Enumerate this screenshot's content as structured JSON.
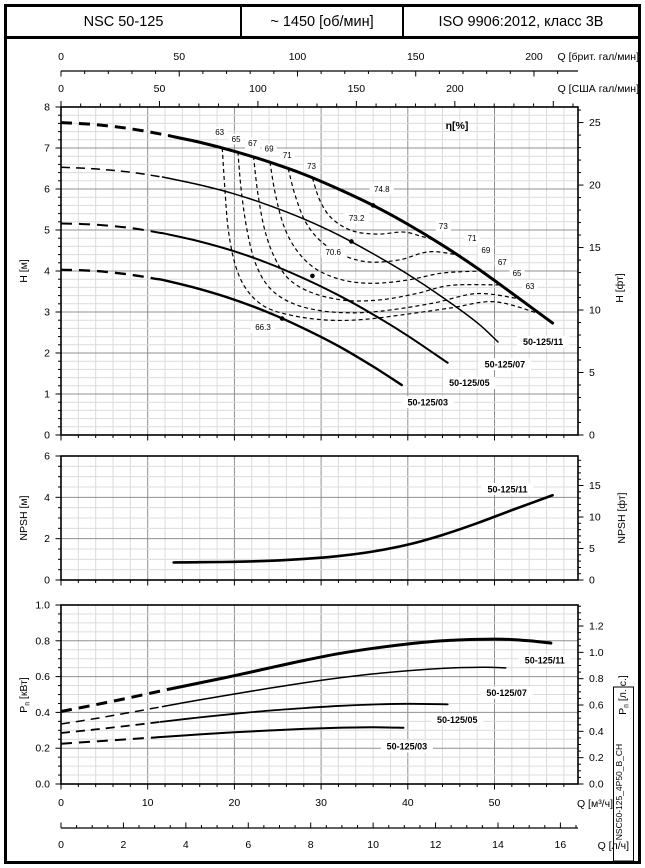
{
  "header": {
    "model": "NSC 50-125",
    "speed": "~ 1450 [об/мин]",
    "standard": "ISO 9906:2012, класс 3В"
  },
  "side_text": "NSC50-125_4P50_B_CH",
  "colors": {
    "ink": "#000000",
    "grid_minor": "#dcdcdc",
    "grid_major": "#909090"
  },
  "chart_data": {
    "type": "line",
    "x_scales": {
      "top_imperial": {
        "label": "Q [брит. гал/мин]",
        "ticks": [
          "0",
          "50",
          "100",
          "150",
          "200"
        ],
        "minor_step": 10,
        "max": 218,
        "m3h_per_unit": 0.27276
      },
      "top_us": {
        "label": "Q [США гал/мин]",
        "ticks": [
          "0",
          "50",
          "100",
          "150",
          "200"
        ],
        "minor_step": 10,
        "max": 262,
        "m3h_per_unit": 0.22712
      },
      "bottom_m3h": {
        "label": "Q [м³/ч]",
        "ticks": [
          "0",
          "10",
          "20",
          "30",
          "40",
          "50"
        ],
        "minor_step": 2,
        "max": 59.6,
        "m3h_per_unit": 1
      },
      "bottom_ls": {
        "label": "Q [л/ч]",
        "ticks": [
          "0",
          "2",
          "4",
          "6",
          "8",
          "10",
          "12",
          "14",
          "16"
        ],
        "minor_step": 0.5,
        "max": 16.5,
        "m3h_per_unit": 3.6
      },
      "q_range_m3h": [
        0,
        59.63
      ]
    },
    "head": {
      "y_left": {
        "label": "H [м]",
        "ticks": [
          "0",
          "1",
          "2",
          "3",
          "4",
          "5",
          "6",
          "7",
          "8"
        ],
        "range": [
          0,
          8
        ]
      },
      "y_right": {
        "label": "H [фт]",
        "ticks": [
          "0",
          "5",
          "10",
          "15",
          "20",
          "25"
        ]
      },
      "eta_label": {
        "text": "η[%]",
        "q": 45.7,
        "h": 7.56
      },
      "curves": [
        {
          "name": "50-125/11",
          "width": 3,
          "dash_until": 12.5,
          "label_at": [
            55.6,
            2.27
          ],
          "points": [
            [
              0,
              7.62
            ],
            [
              4,
              7.57
            ],
            [
              8,
              7.47
            ],
            [
              12,
              7.32
            ],
            [
              16,
              7.14
            ],
            [
              20,
              6.92
            ],
            [
              24,
              6.66
            ],
            [
              28,
              6.36
            ],
            [
              32,
              6.0
            ],
            [
              36,
              5.6
            ],
            [
              40,
              5.14
            ],
            [
              44,
              4.63
            ],
            [
              48,
              4.07
            ],
            [
              52,
              3.46
            ],
            [
              56.7,
              2.73
            ]
          ]
        },
        {
          "name": "50-125/07",
          "width": 1.5,
          "dash_until": 12,
          "label_at": [
            51.2,
            1.73
          ],
          "points": [
            [
              0,
              6.53
            ],
            [
              4,
              6.49
            ],
            [
              8,
              6.41
            ],
            [
              12,
              6.28
            ],
            [
              16,
              6.1
            ],
            [
              20,
              5.88
            ],
            [
              24,
              5.6
            ],
            [
              28,
              5.27
            ],
            [
              32,
              4.88
            ],
            [
              36,
              4.42
            ],
            [
              40,
              3.92
            ],
            [
              44,
              3.36
            ],
            [
              48,
              2.74
            ],
            [
              50.4,
              2.27
            ]
          ]
        },
        {
          "name": "50-125/05",
          "width": 2,
          "dash_until": 11.5,
          "label_at": [
            47.1,
            1.27
          ],
          "points": [
            [
              0,
              5.16
            ],
            [
              4,
              5.13
            ],
            [
              8,
              5.05
            ],
            [
              12,
              4.91
            ],
            [
              16,
              4.72
            ],
            [
              20,
              4.48
            ],
            [
              24,
              4.18
            ],
            [
              28,
              3.82
            ],
            [
              32,
              3.41
            ],
            [
              36,
              2.94
            ],
            [
              40,
              2.42
            ],
            [
              44.6,
              1.76
            ]
          ]
        },
        {
          "name": "50-125/03",
          "width": 2.4,
          "dash_until": 11,
          "label_at": [
            42.3,
            0.8
          ],
          "points": [
            [
              0,
              4.03
            ],
            [
              4,
              4.0
            ],
            [
              8,
              3.91
            ],
            [
              12,
              3.77
            ],
            [
              16,
              3.56
            ],
            [
              20,
              3.3
            ],
            [
              24,
              2.98
            ],
            [
              28,
              2.6
            ],
            [
              32,
              2.17
            ],
            [
              36,
              1.67
            ],
            [
              39.3,
              1.22
            ]
          ]
        }
      ],
      "bep_points": [
        {
          "value": "74.8",
          "dot": [
            36,
            5.6
          ],
          "label_at": [
            37.0,
            6.0
          ]
        },
        {
          "value": "73.2",
          "dot": [
            33.5,
            4.72
          ],
          "label_at": [
            34.1,
            5.29
          ]
        },
        {
          "value": "70.6",
          "dot": [
            29,
            3.88
          ],
          "label_at": [
            31.4,
            4.46
          ]
        },
        {
          "value": "66.3",
          "dot": [
            25.5,
            2.84
          ],
          "label_at": [
            23.3,
            2.63
          ]
        }
      ],
      "efficiency_contours": [
        {
          "value": "63",
          "label_top": [
            18.3,
            7.39
          ],
          "label_right": [
            54.1,
            3.63
          ],
          "points": [
            [
              18.6,
              7.0
            ],
            [
              18.9,
              6.0
            ],
            [
              19.3,
              5.0
            ],
            [
              20.1,
              4.15
            ],
            [
              21.4,
              3.55
            ],
            [
              23.6,
              3.12
            ],
            [
              27,
              2.9
            ],
            [
              31,
              2.8
            ],
            [
              35,
              2.82
            ],
            [
              40,
              2.95
            ],
            [
              45,
              3.1
            ],
            [
              50,
              3.25
            ],
            [
              55.3,
              2.95
            ]
          ]
        },
        {
          "value": "65",
          "label_top": [
            20.2,
            7.22
          ],
          "label_right": [
            52.6,
            3.95
          ],
          "points": [
            [
              20.4,
              6.91
            ],
            [
              20.8,
              5.95
            ],
            [
              21.5,
              4.95
            ],
            [
              22.5,
              4.15
            ],
            [
              24.1,
              3.58
            ],
            [
              26.6,
              3.22
            ],
            [
              30,
              3.03
            ],
            [
              34,
              2.98
            ],
            [
              38,
              3.05
            ],
            [
              43,
              3.22
            ],
            [
              48,
              3.45
            ],
            [
              52.9,
              3.32
            ]
          ]
        },
        {
          "value": "67",
          "label_top": [
            22.1,
            7.12
          ],
          "label_right": [
            50.9,
            4.22
          ],
          "points": [
            [
              22.2,
              6.8
            ],
            [
              22.7,
              5.9
            ],
            [
              23.5,
              5.0
            ],
            [
              24.7,
              4.3
            ],
            [
              26.4,
              3.78
            ],
            [
              29.2,
              3.45
            ],
            [
              33,
              3.28
            ],
            [
              37,
              3.3
            ],
            [
              41,
              3.45
            ],
            [
              45,
              3.65
            ],
            [
              50.7,
              3.66
            ]
          ]
        },
        {
          "value": "69",
          "label_top": [
            24.0,
            6.98
          ],
          "label_right": [
            49.0,
            4.51
          ],
          "points": [
            [
              24.1,
              6.66
            ],
            [
              24.7,
              5.9
            ],
            [
              25.7,
              5.1
            ],
            [
              27.2,
              4.5
            ],
            [
              29.4,
              4.05
            ],
            [
              32.5,
              3.78
            ],
            [
              36,
              3.7
            ],
            [
              40,
              3.78
            ],
            [
              44,
              3.95
            ],
            [
              48.5,
              4.0
            ]
          ]
        },
        {
          "value": "71",
          "label_top": [
            26.1,
            6.83
          ],
          "label_right": [
            47.4,
            4.8
          ],
          "points": [
            [
              26.2,
              6.5
            ],
            [
              27.0,
              5.85
            ],
            [
              28.2,
              5.2
            ],
            [
              30.0,
              4.72
            ],
            [
              32.6,
              4.38
            ],
            [
              35.5,
              4.22
            ],
            [
              39,
              4.27
            ],
            [
              42.5,
              4.47
            ],
            [
              46.1,
              4.38
            ]
          ]
        },
        {
          "value": "73",
          "label_top": [
            28.9,
            6.56
          ],
          "label_right": [
            44.1,
            5.1
          ],
          "points": [
            [
              29.0,
              6.27
            ],
            [
              29.9,
              5.7
            ],
            [
              31.3,
              5.27
            ],
            [
              33.6,
              4.98
            ],
            [
              36.5,
              4.9
            ],
            [
              39.5,
              4.95
            ],
            [
              41.5,
              4.85
            ],
            [
              43.0,
              4.76
            ]
          ]
        }
      ]
    },
    "npsh": {
      "y_left": {
        "label": "NPSH [м]",
        "ticks": [
          "0",
          "2",
          "4",
          "6"
        ],
        "range": [
          0,
          6
        ]
      },
      "y_right": {
        "label": "NPSH [фт]",
        "ticks": [
          "0",
          "5",
          "10",
          "15"
        ]
      },
      "curves": [
        {
          "name": "50-125/11",
          "width": 2.6,
          "label_at": [
            51.5,
            4.4
          ],
          "points": [
            [
              13,
              0.85
            ],
            [
              16,
              0.86
            ],
            [
              20,
              0.88
            ],
            [
              24,
              0.93
            ],
            [
              28,
              1.02
            ],
            [
              32,
              1.16
            ],
            [
              36,
              1.38
            ],
            [
              40,
              1.71
            ],
            [
              44,
              2.18
            ],
            [
              48,
              2.75
            ],
            [
              52,
              3.38
            ],
            [
              56.7,
              4.1
            ]
          ]
        }
      ]
    },
    "power": {
      "y_left": {
        "label_pre": "P",
        "label_sub": "п",
        "label_post": " [кВт]",
        "ticks": [
          "0.0",
          "0.2",
          "0.4",
          "0.6",
          "0.8",
          "1.0"
        ],
        "range": [
          0,
          1
        ]
      },
      "y_right": {
        "label_pre": "P",
        "label_sub": "п",
        "label_post": " [л. с.]",
        "ticks": [
          "0.0",
          "0.2",
          "0.4",
          "0.6",
          "0.8",
          "1.0",
          "1.2"
        ]
      },
      "curves": [
        {
          "name": "50-125/11",
          "width": 3,
          "dash_until": 12.5,
          "label_at": [
            55.8,
            0.69
          ],
          "points": [
            [
              0,
              0.405
            ],
            [
              4,
              0.443
            ],
            [
              8,
              0.483
            ],
            [
              12,
              0.525
            ],
            [
              16,
              0.565
            ],
            [
              20,
              0.605
            ],
            [
              24,
              0.648
            ],
            [
              28,
              0.69
            ],
            [
              32,
              0.728
            ],
            [
              36,
              0.758
            ],
            [
              40,
              0.782
            ],
            [
              44,
              0.8
            ],
            [
              48,
              0.808
            ],
            [
              51,
              0.809
            ],
            [
              54,
              0.8
            ],
            [
              56.5,
              0.787
            ]
          ]
        },
        {
          "name": "50-125/07",
          "width": 1.5,
          "dash_until": 12,
          "label_at": [
            51.4,
            0.51
          ],
          "points": [
            [
              0,
              0.335
            ],
            [
              4,
              0.366
            ],
            [
              8,
              0.4
            ],
            [
              12,
              0.435
            ],
            [
              16,
              0.47
            ],
            [
              20,
              0.503
            ],
            [
              24,
              0.535
            ],
            [
              28,
              0.565
            ],
            [
              32,
              0.592
            ],
            [
              36,
              0.615
            ],
            [
              40,
              0.633
            ],
            [
              44,
              0.646
            ],
            [
              47,
              0.651
            ],
            [
              49,
              0.652
            ],
            [
              51.3,
              0.649
            ]
          ]
        },
        {
          "name": "50-125/05",
          "width": 1.8,
          "dash_until": 11.5,
          "label_at": [
            45.7,
            0.36
          ],
          "points": [
            [
              0,
              0.285
            ],
            [
              4,
              0.305
            ],
            [
              8,
              0.327
            ],
            [
              12,
              0.35
            ],
            [
              16,
              0.372
            ],
            [
              20,
              0.392
            ],
            [
              24,
              0.41
            ],
            [
              28,
              0.424
            ],
            [
              32,
              0.436
            ],
            [
              36,
              0.444
            ],
            [
              40,
              0.448
            ],
            [
              44.6,
              0.445
            ]
          ]
        },
        {
          "name": "50-125/03",
          "width": 2,
          "dash_until": 11,
          "label_at": [
            39.9,
            0.21
          ],
          "points": [
            [
              0,
              0.225
            ],
            [
              4,
              0.238
            ],
            [
              8,
              0.251
            ],
            [
              12,
              0.264
            ],
            [
              16,
              0.277
            ],
            [
              20,
              0.289
            ],
            [
              24,
              0.299
            ],
            [
              28,
              0.308
            ],
            [
              32,
              0.314
            ],
            [
              36,
              0.317
            ],
            [
              39.5,
              0.314
            ]
          ]
        }
      ]
    }
  }
}
